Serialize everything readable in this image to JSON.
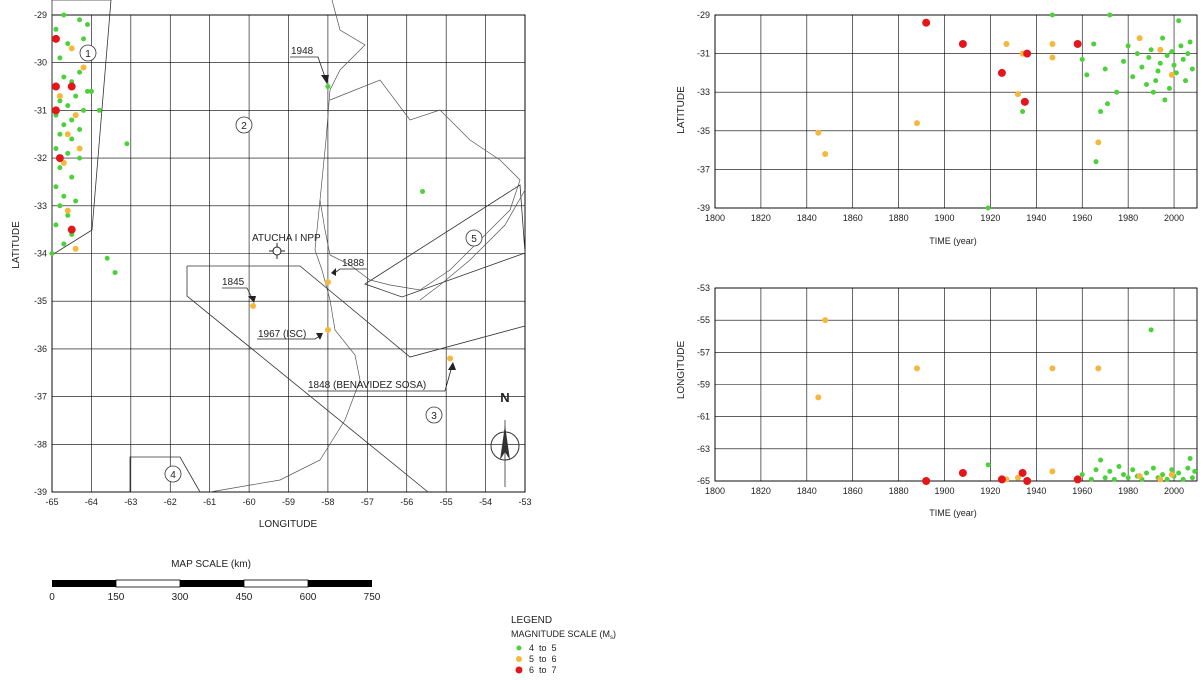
{
  "colors": {
    "mag_4_5": "#4cd13a",
    "mag_5_6": "#f5b83c",
    "mag_6_7": "#e3161c",
    "grid": "#000000"
  },
  "chart_data": [
    {
      "id": "map",
      "type": "scatter",
      "xlabel": "LONGITUDE",
      "ylabel": "LATITUDE",
      "xlim": [
        -65,
        -53
      ],
      "ylim": [
        -39,
        -29
      ],
      "xticks": [
        "-65",
        "-64",
        "-63",
        "-62",
        "-61",
        "-60",
        "-59",
        "-58",
        "-57",
        "-56",
        "-55",
        "-54",
        "-53"
      ],
      "yticks": [
        "-29",
        "-30",
        "-31",
        "-32",
        "-33",
        "-34",
        "-35",
        "-36",
        "-37",
        "-38",
        "-39"
      ],
      "annotations": [
        "1948",
        "1888",
        "1845",
        "1967 (ISC)",
        "1848 (BENAVIDEZ SOSA)",
        "ATUCHA I NPP",
        "N"
      ],
      "zone_labels": [
        "1",
        "2",
        "3",
        "4",
        "5"
      ],
      "series": [
        {
          "name": "4 to 5",
          "points": [
            [
              -64.7,
              -29.0
            ],
            [
              -64.3,
              -29.1
            ],
            [
              -64.1,
              -29.2
            ],
            [
              -64.9,
              -29.3
            ],
            [
              -64.2,
              -29.5
            ],
            [
              -64.6,
              -29.6
            ],
            [
              -64.8,
              -29.9
            ],
            [
              -64.3,
              -30.2
            ],
            [
              -64.7,
              -30.3
            ],
            [
              -64.5,
              -30.4
            ],
            [
              -64.9,
              -30.5
            ],
            [
              -64.1,
              -30.6
            ],
            [
              -64.4,
              -30.7
            ],
            [
              -64.8,
              -30.8
            ],
            [
              -64.6,
              -30.9
            ],
            [
              -64.2,
              -31.0
            ],
            [
              -64.9,
              -31.1
            ],
            [
              -64.5,
              -31.2
            ],
            [
              -64.7,
              -31.3
            ],
            [
              -64.3,
              -31.4
            ],
            [
              -64.8,
              -31.5
            ],
            [
              -64.5,
              -31.6
            ],
            [
              -64.9,
              -31.8
            ],
            [
              -64.6,
              -31.9
            ],
            [
              -64.3,
              -32.0
            ],
            [
              -64.8,
              -32.2
            ],
            [
              -64.5,
              -32.4
            ],
            [
              -64.9,
              -32.6
            ],
            [
              -64.7,
              -32.8
            ],
            [
              -64.4,
              -32.9
            ],
            [
              -64.8,
              -33.0
            ],
            [
              -64.6,
              -33.2
            ],
            [
              -64.9,
              -33.4
            ],
            [
              -64.5,
              -33.6
            ],
            [
              -64.7,
              -33.8
            ],
            [
              -65.0,
              -34.0
            ],
            [
              -63.6,
              -34.1
            ],
            [
              -63.4,
              -34.4
            ],
            [
              -63.8,
              -31.0
            ],
            [
              -63.1,
              -31.7
            ],
            [
              -64.0,
              -30.6
            ],
            [
              -58.0,
              -30.5
            ],
            [
              -55.6,
              -32.7
            ],
            [
              -58.0,
              -35.6
            ],
            [
              -54.9,
              -36.2
            ]
          ]
        },
        {
          "name": "5 to 6",
          "points": [
            [
              -64.5,
              -29.7
            ],
            [
              -64.2,
              -30.1
            ],
            [
              -64.8,
              -30.7
            ],
            [
              -64.4,
              -31.1
            ],
            [
              -64.6,
              -31.5
            ],
            [
              -64.3,
              -31.8
            ],
            [
              -64.7,
              -32.1
            ],
            [
              -64.6,
              -33.1
            ],
            [
              -64.4,
              -33.9
            ],
            [
              -58.0,
              -34.6
            ],
            [
              -59.9,
              -35.1
            ],
            [
              -58.0,
              -35.6
            ],
            [
              -54.9,
              -36.2
            ]
          ]
        },
        {
          "name": "6 to 7",
          "points": [
            [
              -64.9,
              -29.5
            ],
            [
              -64.9,
              -30.5
            ],
            [
              -64.5,
              -30.5
            ],
            [
              -64.9,
              -31.0
            ],
            [
              -64.8,
              -32.0
            ],
            [
              -64.5,
              -33.5
            ]
          ]
        }
      ]
    },
    {
      "id": "lat-time",
      "type": "scatter",
      "xlabel": "TIME (year)",
      "ylabel": "LATITUDE",
      "xlim": [
        1800,
        2010
      ],
      "ylim": [
        -39,
        -29
      ],
      "xticks": [
        "1800",
        "1820",
        "1840",
        "1860",
        "1880",
        "1900",
        "1920",
        "1940",
        "1960",
        "1980",
        "2000"
      ],
      "yticks": [
        "-29",
        "-31",
        "-33",
        "-35",
        "-37",
        "-39"
      ],
      "series": [
        {
          "name": "4 to 5",
          "points": [
            [
              1919,
              -39.0
            ],
            [
              1934,
              -34.0
            ],
            [
              1947,
              -29.0
            ],
            [
              1960,
              -31.3
            ],
            [
              1962,
              -32.1
            ],
            [
              1965,
              -30.5
            ],
            [
              1966,
              -36.6
            ],
            [
              1968,
              -34.0
            ],
            [
              1970,
              -31.8
            ],
            [
              1971,
              -33.6
            ],
            [
              1972,
              -29.0
            ],
            [
              1975,
              -33.0
            ],
            [
              1978,
              -31.4
            ],
            [
              1980,
              -30.6
            ],
            [
              1982,
              -32.2
            ],
            [
              1984,
              -31.0
            ],
            [
              1986,
              -31.7
            ],
            [
              1988,
              -32.6
            ],
            [
              1989,
              -31.2
            ],
            [
              1990,
              -30.8
            ],
            [
              1991,
              -33.0
            ],
            [
              1992,
              -32.4
            ],
            [
              1993,
              -31.9
            ],
            [
              1994,
              -31.5
            ],
            [
              1995,
              -30.2
            ],
            [
              1996,
              -33.4
            ],
            [
              1997,
              -31.1
            ],
            [
              1998,
              -32.8
            ],
            [
              1999,
              -30.9
            ],
            [
              2000,
              -31.6
            ],
            [
              2001,
              -32.0
            ],
            [
              2002,
              -29.3
            ],
            [
              2003,
              -30.6
            ],
            [
              2004,
              -31.3
            ],
            [
              2005,
              -32.4
            ],
            [
              2006,
              -31.0
            ],
            [
              2007,
              -30.4
            ],
            [
              2008,
              -31.8
            ]
          ]
        },
        {
          "name": "5 to 6",
          "points": [
            [
              1845,
              -35.1
            ],
            [
              1848,
              -36.2
            ],
            [
              1888,
              -34.6
            ],
            [
              1927,
              -30.5
            ],
            [
              1932,
              -33.1
            ],
            [
              1934,
              -31.0
            ],
            [
              1947,
              -30.5
            ],
            [
              1947,
              -31.2
            ],
            [
              1967,
              -35.6
            ],
            [
              1985,
              -30.2
            ],
            [
              1994,
              -30.8
            ],
            [
              1999,
              -32.1
            ]
          ]
        },
        {
          "name": "6 to 7",
          "points": [
            [
              1892,
              -29.4
            ],
            [
              1908,
              -30.5
            ],
            [
              1925,
              -32.0
            ],
            [
              1935,
              -33.5
            ],
            [
              1936,
              -31.0
            ],
            [
              1958,
              -30.5
            ]
          ]
        }
      ]
    },
    {
      "id": "lon-time",
      "type": "scatter",
      "xlabel": "TIME (year)",
      "ylabel": "LONGITUDE",
      "xlim": [
        1800,
        2010
      ],
      "ylim": [
        -65,
        -53
      ],
      "xticks": [
        "1800",
        "1820",
        "1840",
        "1860",
        "1880",
        "1900",
        "1920",
        "1940",
        "1960",
        "1980",
        "2000"
      ],
      "yticks": [
        "-53",
        "-55",
        "-57",
        "-59",
        "-61",
        "-63",
        "-65"
      ],
      "series": [
        {
          "name": "4 to 5",
          "points": [
            [
              1919,
              -64.0
            ],
            [
              1960,
              -64.6
            ],
            [
              1964,
              -64.9
            ],
            [
              1966,
              -64.3
            ],
            [
              1968,
              -63.7
            ],
            [
              1970,
              -64.8
            ],
            [
              1972,
              -64.4
            ],
            [
              1974,
              -64.9
            ],
            [
              1976,
              -64.1
            ],
            [
              1978,
              -64.6
            ],
            [
              1980,
              -64.8
            ],
            [
              1982,
              -64.3
            ],
            [
              1984,
              -64.7
            ],
            [
              1986,
              -64.9
            ],
            [
              1988,
              -64.5
            ],
            [
              1990,
              -55.6
            ],
            [
              1991,
              -64.2
            ],
            [
              1993,
              -64.8
            ],
            [
              1995,
              -64.6
            ],
            [
              1997,
              -64.9
            ],
            [
              1999,
              -64.3
            ],
            [
              2000,
              -64.7
            ],
            [
              2002,
              -64.5
            ],
            [
              2004,
              -64.9
            ],
            [
              2006,
              -64.2
            ],
            [
              2007,
              -63.6
            ],
            [
              2008,
              -64.8
            ],
            [
              2009,
              -64.4
            ]
          ]
        },
        {
          "name": "5 to 6",
          "points": [
            [
              1845,
              -59.8
            ],
            [
              1848,
              -55.0
            ],
            [
              1888,
              -58.0
            ],
            [
              1927,
              -64.9
            ],
            [
              1932,
              -64.8
            ],
            [
              1947,
              -58.0
            ],
            [
              1947,
              -64.4
            ],
            [
              1967,
              -58.0
            ],
            [
              1985,
              -64.7
            ],
            [
              1994,
              -64.9
            ],
            [
              1999,
              -64.6
            ]
          ]
        },
        {
          "name": "6 to 7",
          "points": [
            [
              1892,
              -65.0
            ],
            [
              1908,
              -64.5
            ],
            [
              1925,
              -64.9
            ],
            [
              1934,
              -64.5
            ],
            [
              1936,
              -65.0
            ],
            [
              1958,
              -64.9
            ]
          ]
        }
      ]
    }
  ],
  "scale_bar": {
    "title": "MAP SCALE (km)",
    "ticks": [
      "0",
      "150",
      "300",
      "450",
      "600",
      "750"
    ]
  },
  "legend": {
    "title": "LEGEND",
    "subtitle": "MAGNITUDE SCALE (M",
    "subtitle_sub": "s",
    "subtitle_end": ")",
    "entries": [
      "4  to  5",
      "5  to  6",
      "6  to  7"
    ]
  }
}
